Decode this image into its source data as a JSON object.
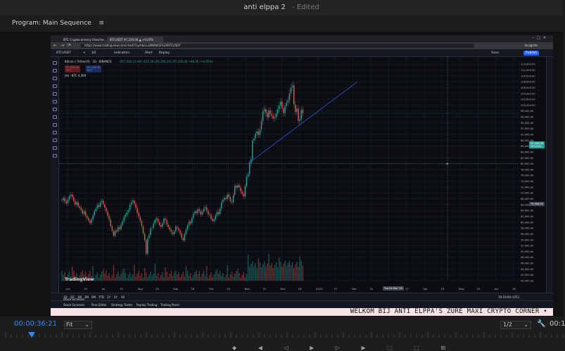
{
  "app": {
    "title": "anti elppa 2",
    "status": "- Edited"
  },
  "panel": {
    "title": "Program: Main Sequence",
    "menu_icon": "hamburger-icon"
  },
  "browser": {
    "tabs": [
      "BTC Cryptocurrency Ekosche...",
      "BTCUSDT 97,226.06 ▲ +0.05%"
    ],
    "url": "https://www.tradingview.com/chart/?symbol=BINANCE%3ABTCUSDT",
    "incognito": "Incognito"
  },
  "tradingview": {
    "symbol": "BTCUSDT",
    "interval": "1D",
    "toolbar": [
      "Indicators",
      "Alert",
      "Replay"
    ],
    "save": "Save",
    "publish": "Publish",
    "legend_title": "Bitcoin / TetherUS · 1D · BINANCE",
    "legend_ohlc": "O97,326.13 H97,435.36 L95,350.24 C97,226.06 +46.36 (+0.05%)",
    "sell_price": "97,226.06",
    "buy_price": "97,226.06",
    "sell_label": "SELL",
    "buy_label": "BUY",
    "vol_label": "Vol · BTC 4,369",
    "logo": "TradingView",
    "cursor_price": "79,956.90",
    "last_price": "97,226.06",
    "last_price_time": "10:13:42",
    "cursor_date": "Tue 04 Mar '25",
    "utc": "10:19:00 (UTC)",
    "ranges": [
      "1D",
      "5D",
      "1M",
      "3M",
      "6M",
      "YTD",
      "1Y",
      "5Y",
      "All"
    ],
    "bottom_tabs": [
      "Stock Screener",
      "Pine Editor",
      "Strategy Tester",
      "Replay Trading",
      "Trading Panel"
    ]
  },
  "chart_data": {
    "type": "candlestick",
    "x_ticks": [
      "Jun",
      "15",
      "Jul",
      "15",
      "Aug",
      "15",
      "Sep",
      "16",
      "Oct",
      "15",
      "Nov",
      "15",
      "Dec",
      "16",
      "2025",
      "15",
      "Feb",
      "15",
      "Mar",
      "17",
      "Apr",
      "16",
      "May",
      "15",
      "Jun",
      "16"
    ],
    "y_ticks": [
      114000,
      112000,
      110000,
      108000,
      106000,
      104000,
      102000,
      100000,
      98000,
      96000,
      94000,
      92000,
      90000,
      88000,
      86000,
      84000,
      82000,
      80000,
      78000,
      76000,
      74000,
      72000,
      70000,
      68000,
      66000,
      64000,
      62000,
      60000,
      58000,
      56000,
      54000,
      52000,
      50000,
      48000,
      46000,
      44000,
      42000,
      40000
    ],
    "ylim": [
      40000,
      115000
    ],
    "closes": [
      67500,
      68200,
      67100,
      66400,
      67800,
      68900,
      69300,
      68600,
      67200,
      66000,
      66800,
      65400,
      64900,
      64100,
      62800,
      63700,
      62200,
      61400,
      60600,
      59700,
      60900,
      62300,
      63800,
      64600,
      65900,
      65200,
      66800,
      67300,
      66100,
      64900,
      63600,
      62100,
      60800,
      58600,
      56900,
      55400,
      57200,
      56800,
      58300,
      57600,
      59100,
      60300,
      61800,
      62600,
      63400,
      64100,
      65900,
      66800,
      67400,
      66300,
      64900,
      63200,
      61800,
      60400,
      58600,
      56100,
      53900,
      49200,
      54400,
      55600,
      57900,
      58100,
      59600,
      60800,
      61200,
      60100,
      59000,
      58400,
      59600,
      61200,
      60700,
      59100,
      58300,
      57400,
      56600,
      55900,
      56800,
      58400,
      57900,
      57200,
      56100,
      54600,
      53800,
      55900,
      57400,
      58800,
      60200,
      59600,
      61400,
      62900,
      63700,
      63100,
      64400,
      63800,
      62600,
      63500,
      64600,
      65100,
      63900,
      62700,
      62400,
      61100,
      60400,
      60900,
      62300,
      63500,
      62800,
      64600,
      66800,
      67600,
      68300,
      67900,
      69400,
      68600,
      67100,
      66800,
      69300,
      72400,
      71800,
      72600,
      71900,
      70400,
      69600,
      68800,
      72300,
      75600,
      76400,
      80100,
      81500,
      87900,
      88600,
      90300,
      91000,
      89800,
      91600,
      94500,
      97900,
      98600,
      97400,
      95800,
      98200,
      97000,
      96300,
      95400,
      95900,
      97200,
      98600,
      99800,
      101200,
      98900,
      97300,
      99600,
      100900,
      101700,
      104000,
      106100,
      106700,
      100200,
      97700,
      98800,
      94600,
      95100,
      98400,
      97200
    ],
    "trendline": {
      "from": [
        "Nov 20",
        81000
      ],
      "to": [
        "Jan 2",
        106000
      ]
    },
    "crosshair": {
      "date": "Tue 04 Mar '25",
      "price": 79956.9
    }
  },
  "ticker": {
    "text": "WELKOM BIJ ANTI ELPPA'S ZURE MAXI CRYPTO CORNER •"
  },
  "footer": {
    "timecode": "00:00:36:21",
    "zoom": "Fit",
    "resolution": "1/2",
    "timecode_end": "00:1"
  }
}
